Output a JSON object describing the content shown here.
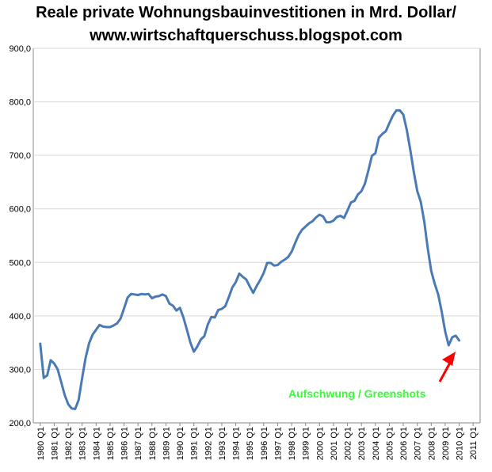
{
  "chart_data": {
    "type": "line",
    "title": "Reale private Wohnungsbauinvestitionen in Mrd. Dollar/",
    "subtitle": "www.wirtschaftquerschuss.blogspot.com",
    "xlabel": "",
    "ylabel": "",
    "ylim": [
      200,
      900
    ],
    "yticks": [
      "200,0",
      "300,0",
      "400,0",
      "500,0",
      "600,0",
      "700,0",
      "800,0",
      "900,0"
    ],
    "xticks": [
      "1980 Q1",
      "1981 Q1",
      "1982 Q1",
      "1983 Q1",
      "1984 Q1",
      "1985 Q1",
      "1986 Q1",
      "1987 Q1",
      "1988 Q1",
      "1989 Q1",
      "1990 Q1",
      "1991 Q1",
      "1992 Q1",
      "1993 Q1",
      "1994 Q1",
      "1995 Q1",
      "1996 Q1",
      "1997 Q1",
      "1998 Q1",
      "1999 Q1",
      "2000 Q1",
      "2001 Q1",
      "2002 Q1",
      "2003 Q1",
      "2004 Q1",
      "2005 Q1",
      "2006 Q1",
      "2007 Q1",
      "2008 Q1",
      "2009 Q1",
      "2010 Q1",
      "2011 Q1"
    ],
    "grid": "horizontal",
    "legend": "none",
    "line_color": "#4a7ab5",
    "series": [
      {
        "values": [
          348,
          284,
          289,
          317,
          311,
          300,
          276,
          252,
          235,
          227,
          226,
          243,
          284,
          322,
          349,
          365,
          374,
          383,
          380,
          379,
          379,
          382,
          386,
          395,
          414,
          434,
          441,
          440,
          439,
          441,
          440,
          441,
          433,
          436,
          437,
          440,
          437,
          423,
          419,
          410,
          415,
          397,
          374,
          350,
          333,
          343,
          356,
          362,
          384,
          398,
          397,
          411,
          413,
          418,
          435,
          453,
          463,
          479,
          473,
          468,
          455,
          443,
          456,
          467,
          480,
          499,
          499,
          494,
          495,
          501,
          505,
          510,
          520,
          536,
          551,
          561,
          567,
          573,
          577,
          584,
          589,
          586,
          575,
          575,
          578,
          585,
          587,
          583,
          597,
          612,
          615,
          627,
          633,
          647,
          672,
          699,
          704,
          733,
          740,
          745,
          760,
          774,
          784,
          784,
          776,
          747,
          710,
          669,
          633,
          613,
          576,
          526,
          484,
          460,
          440,
          408,
          371,
          345,
          360,
          363,
          354
        ]
      }
    ],
    "annotations": [
      {
        "text": "Aufschwung / Greenshots",
        "color": "#33ff33"
      }
    ],
    "arrow_color": "#ff0000"
  }
}
